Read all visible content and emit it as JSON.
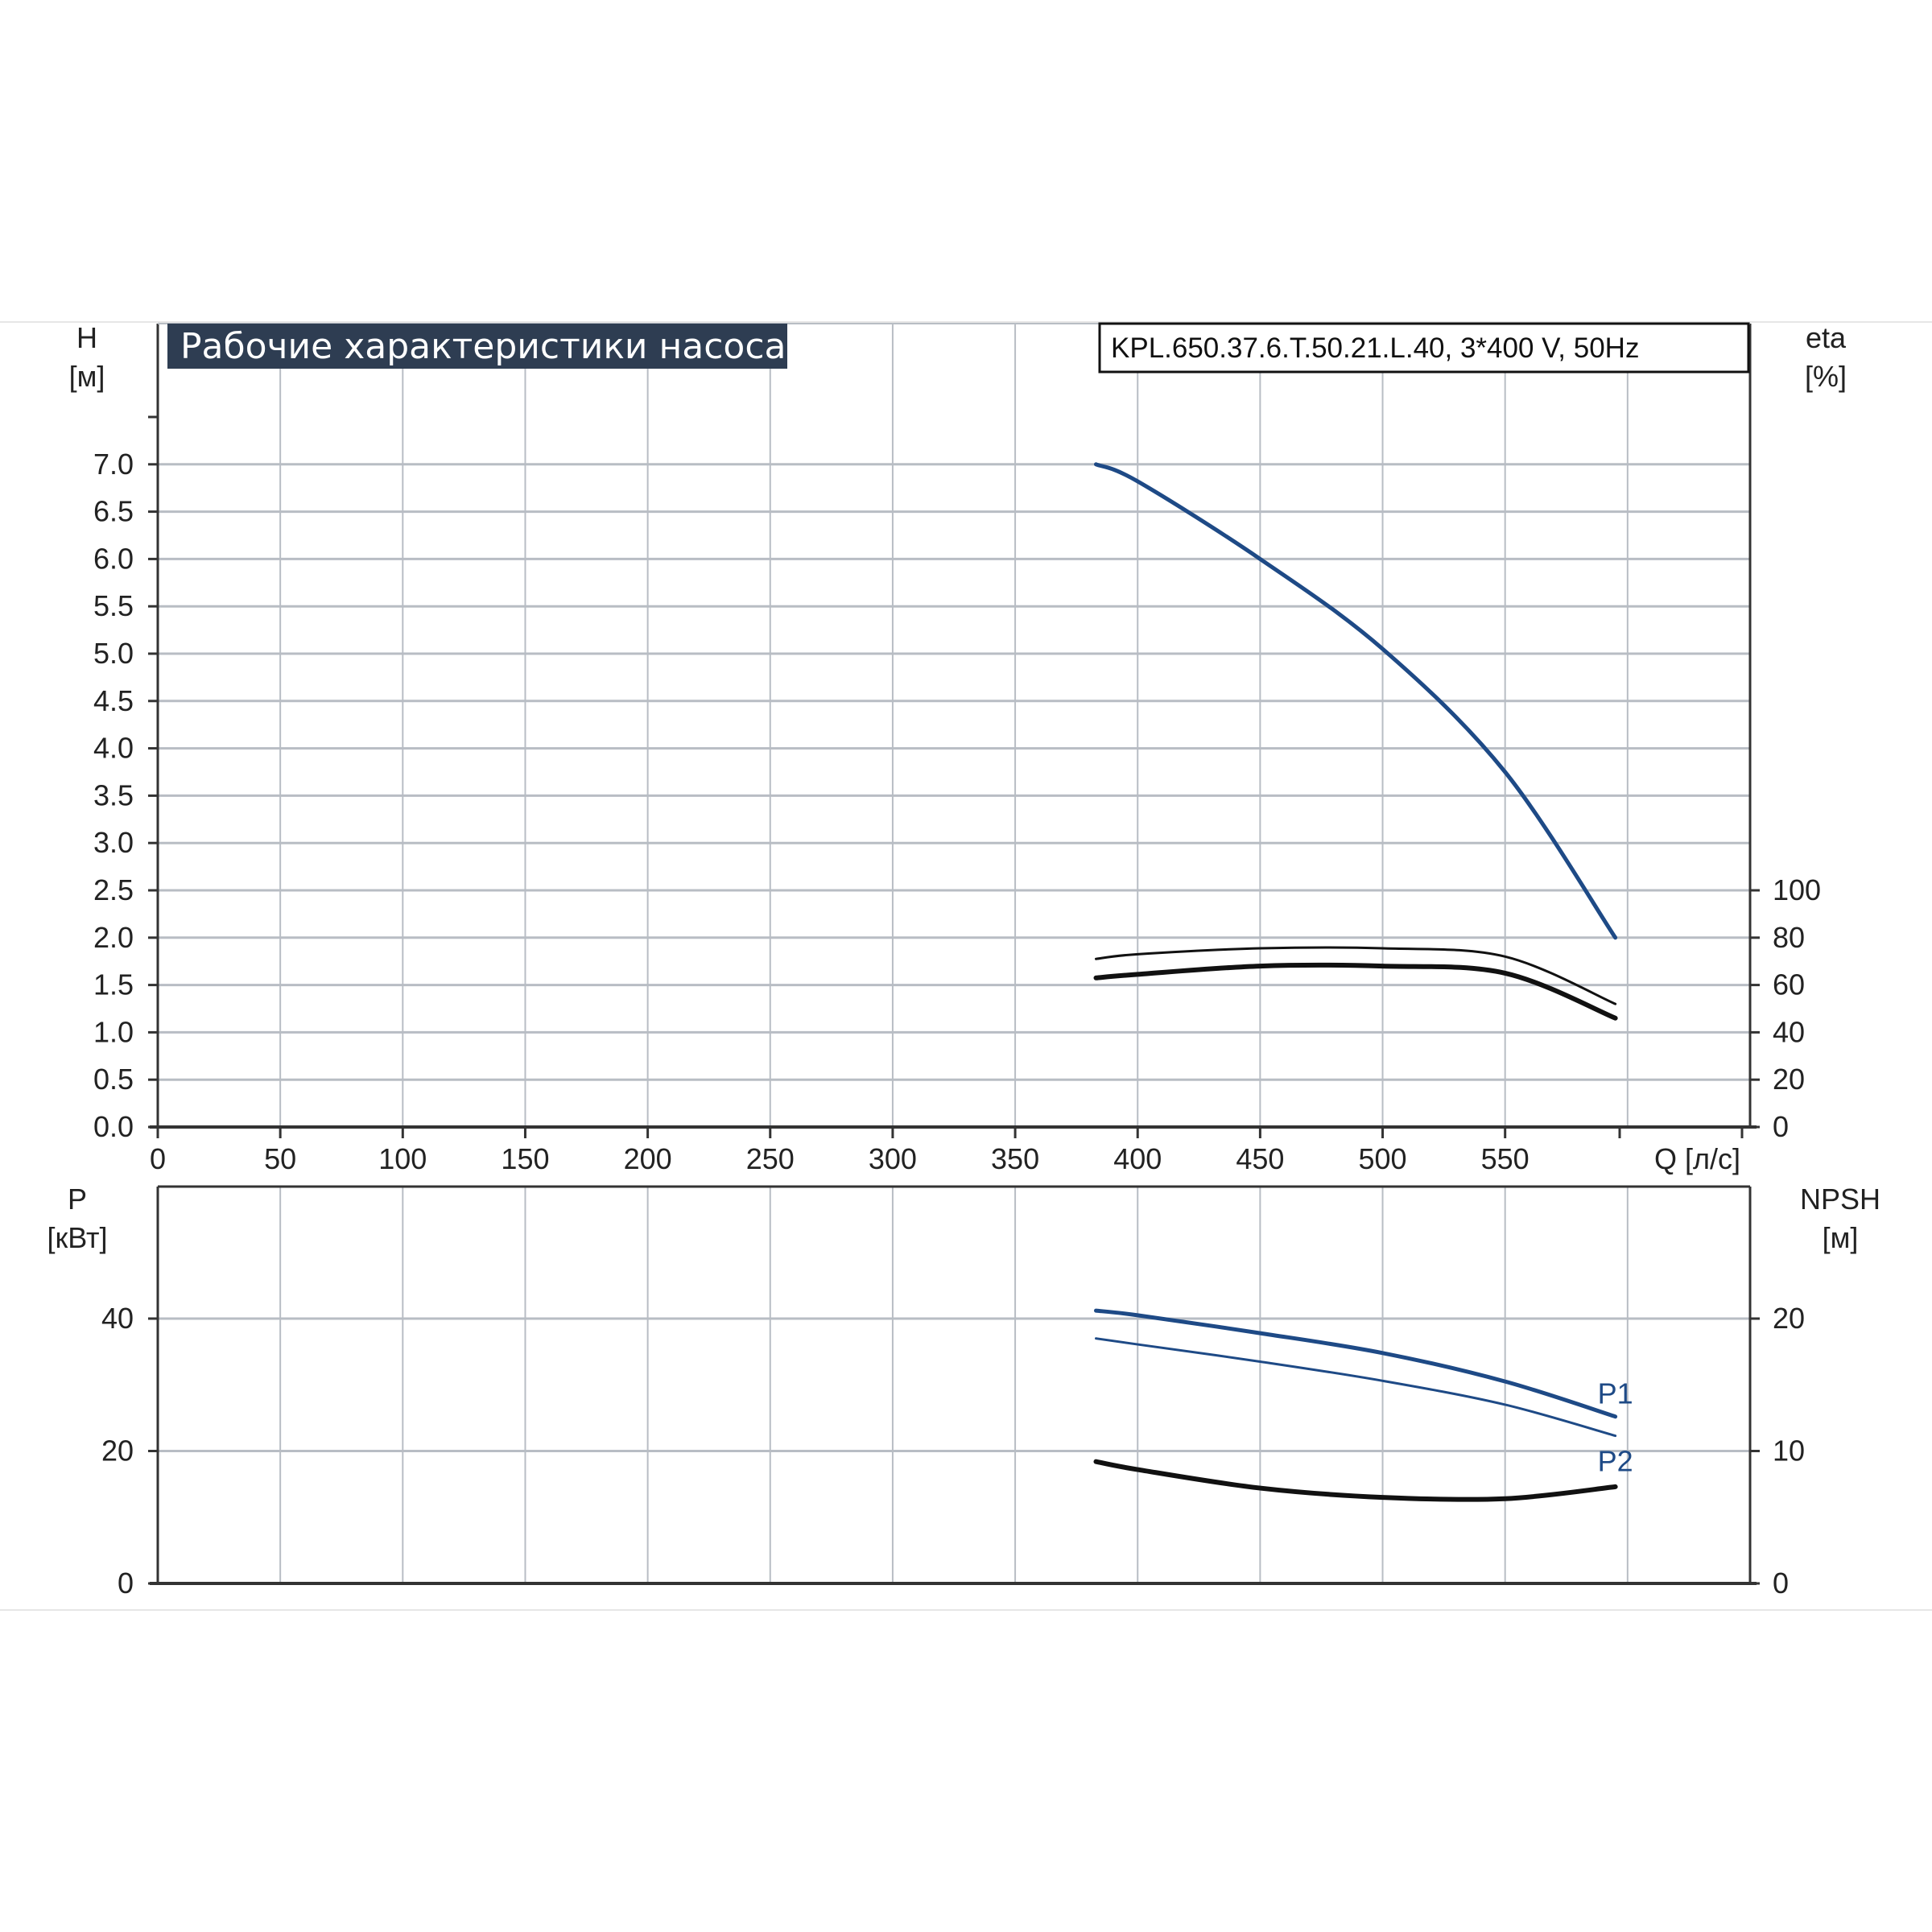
{
  "title": "Рабочие характеристики насоса",
  "model": "KPL.650.37.6.T.50.21.L.40, 3*400 V, 50Hz",
  "colors": {
    "blue": "#1e4a86",
    "black": "#111111",
    "grid": "#b8bdc4",
    "title_bg": "#2e3d52"
  },
  "chart_data": [
    {
      "type": "line",
      "name": "head-efficiency",
      "xlabel": "Q [л/с]",
      "x_ticks": [
        "0",
        "50",
        "100",
        "150",
        "200",
        "250",
        "300",
        "350",
        "400",
        "450",
        "500",
        "550"
      ],
      "xlim": [
        0,
        650
      ],
      "left_axis": {
        "label_line1": "H",
        "label_line2": "[м]",
        "ticks": [
          "0.0",
          "0.5",
          "1.0",
          "1.5",
          "2.0",
          "2.5",
          "3.0",
          "3.5",
          "4.0",
          "4.5",
          "5.0",
          "5.5",
          "6.0",
          "6.5",
          "7.0"
        ],
        "ylim": [
          0,
          7.5
        ]
      },
      "right_axis": {
        "label_line1": "eta",
        "label_line2": "[%]",
        "ticks": [
          "0",
          "20",
          "40",
          "60",
          "80",
          "100"
        ],
        "ylim": [
          0,
          100
        ]
      },
      "grid": true,
      "series": [
        {
          "key": "H",
          "axis": "left",
          "color": "#1e4a86",
          "width": 5,
          "x": [
            383,
            400,
            450,
            500,
            550,
            595
          ],
          "y": [
            7.0,
            6.82,
            6.0,
            5.05,
            3.75,
            2.0
          ]
        },
        {
          "key": "eta_total",
          "axis": "right",
          "color": "#111111",
          "width": 6,
          "x": [
            383,
            400,
            450,
            500,
            550,
            595
          ],
          "y": [
            63,
            64.5,
            68,
            68,
            65,
            46
          ]
        },
        {
          "key": "eta_hydraulic",
          "axis": "right",
          "color": "#111111",
          "width": 3,
          "x": [
            383,
            400,
            450,
            500,
            550,
            595
          ],
          "y": [
            71,
            73,
            75.5,
            75.5,
            72,
            52
          ]
        }
      ]
    },
    {
      "type": "line",
      "name": "power-npsh",
      "x_ticks": [],
      "xlim": [
        0,
        650
      ],
      "left_axis": {
        "label_line1": "P",
        "label_line2": "[кВт]",
        "ticks": [
          "0",
          "20",
          "40"
        ],
        "ylim": [
          0,
          60
        ]
      },
      "right_axis": {
        "label_line1": "NPSH",
        "label_line2": "[м]",
        "ticks": [
          "0",
          "10",
          "20"
        ],
        "ylim": [
          0,
          30
        ]
      },
      "grid": true,
      "series": [
        {
          "key": "P1",
          "name": "P1",
          "axis": "left",
          "color": "#1e4a86",
          "width": 5,
          "x": [
            383,
            400,
            450,
            500,
            550,
            595
          ],
          "y": [
            41.2,
            40.5,
            37.8,
            34.8,
            30.5,
            25.2
          ]
        },
        {
          "key": "P2",
          "name": "P2",
          "axis": "left",
          "color": "#1e4a86",
          "width": 3,
          "x": [
            383,
            400,
            450,
            500,
            550,
            595
          ],
          "y": [
            37.0,
            36.1,
            33.5,
            30.6,
            27.0,
            22.3
          ]
        },
        {
          "key": "NPSH",
          "axis": "right",
          "color": "#111111",
          "width": 6,
          "x": [
            383,
            400,
            450,
            500,
            550,
            595
          ],
          "y": [
            9.2,
            8.6,
            7.2,
            6.5,
            6.4,
            7.3
          ]
        }
      ]
    }
  ]
}
